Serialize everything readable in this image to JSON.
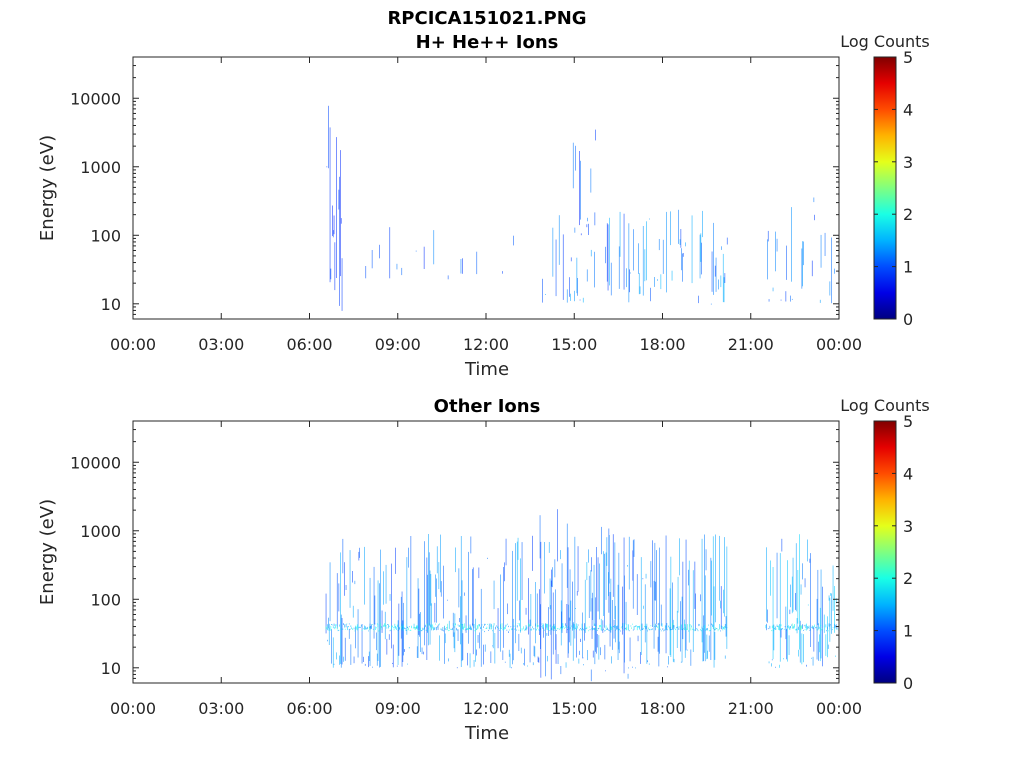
{
  "figure": {
    "title": "RPCICA151021.PNG"
  },
  "chart_data": [
    {
      "type": "heatmap",
      "title": "H+ He++ Ions",
      "xlabel": "Time",
      "ylabel": "Energy (eV)",
      "x_ticks": [
        "00:00",
        "03:00",
        "06:00",
        "09:00",
        "12:00",
        "15:00",
        "18:00",
        "21:00",
        "00:00"
      ],
      "xlim_hours": [
        0,
        24
      ],
      "y_scale": "log",
      "y_ticks": [
        "10",
        "100",
        "1000",
        "10000"
      ],
      "ylim": [
        6,
        40000
      ],
      "colorbar": {
        "label": "Log Counts",
        "ticks": [
          "0",
          "1",
          "2",
          "3",
          "4",
          "5"
        ],
        "range": [
          0,
          5
        ],
        "colormap": "jet"
      },
      "grid": false,
      "activity": [
        {
          "start_hour": 6.55,
          "end_hour": 7.1,
          "e_min": 6,
          "e_max": 20000,
          "density": 0.5,
          "level": 0.4
        },
        {
          "start_hour": 7.9,
          "end_hour": 11.4,
          "e_min": 20,
          "e_max": 150,
          "density": 0.12,
          "level": 0.6
        },
        {
          "start_hour": 11.4,
          "end_hour": 13.2,
          "e_min": 20,
          "e_max": 100,
          "density": 0.06,
          "level": 0.5
        },
        {
          "start_hour": 13.8,
          "end_hour": 20.2,
          "e_min": 10,
          "e_max": 250,
          "density": 0.3,
          "level": 0.8
        },
        {
          "start_hour": 14.9,
          "end_hour": 15.8,
          "e_min": 100,
          "e_max": 20000,
          "density": 0.35,
          "level": 0.6
        },
        {
          "start_hour": 21.5,
          "end_hour": 24.0,
          "e_min": 10,
          "e_max": 400,
          "density": 0.25,
          "level": 0.7
        }
      ]
    },
    {
      "type": "heatmap",
      "title": "Other Ions",
      "xlabel": "Time",
      "ylabel": "Energy (eV)",
      "x_ticks": [
        "00:00",
        "03:00",
        "06:00",
        "09:00",
        "12:00",
        "15:00",
        "18:00",
        "21:00",
        "00:00"
      ],
      "xlim_hours": [
        0,
        24
      ],
      "y_scale": "log",
      "y_ticks": [
        "10",
        "100",
        "1000",
        "10000"
      ],
      "ylim": [
        6,
        40000
      ],
      "colorbar": {
        "label": "Log Counts",
        "ticks": [
          "0",
          "1",
          "2",
          "3",
          "4",
          "5"
        ],
        "range": [
          0,
          5
        ],
        "colormap": "jet"
      },
      "grid": false,
      "activity": [
        {
          "start_hour": 6.55,
          "end_hour": 20.2,
          "e_min": 10,
          "e_max": 900,
          "density": 0.7,
          "level": 0.8
        },
        {
          "start_hour": 6.55,
          "end_hour": 20.2,
          "e_min": 35,
          "e_max": 45,
          "density": 0.95,
          "level": 1.3
        },
        {
          "start_hour": 13.5,
          "end_hour": 17.0,
          "e_min": 6,
          "e_max": 3000,
          "density": 0.2,
          "level": 0.6
        },
        {
          "start_hour": 21.5,
          "end_hour": 24.0,
          "e_min": 10,
          "e_max": 900,
          "density": 0.65,
          "level": 0.9
        },
        {
          "start_hour": 21.5,
          "end_hour": 24.0,
          "e_min": 35,
          "e_max": 45,
          "density": 0.9,
          "level": 1.3
        }
      ]
    }
  ]
}
